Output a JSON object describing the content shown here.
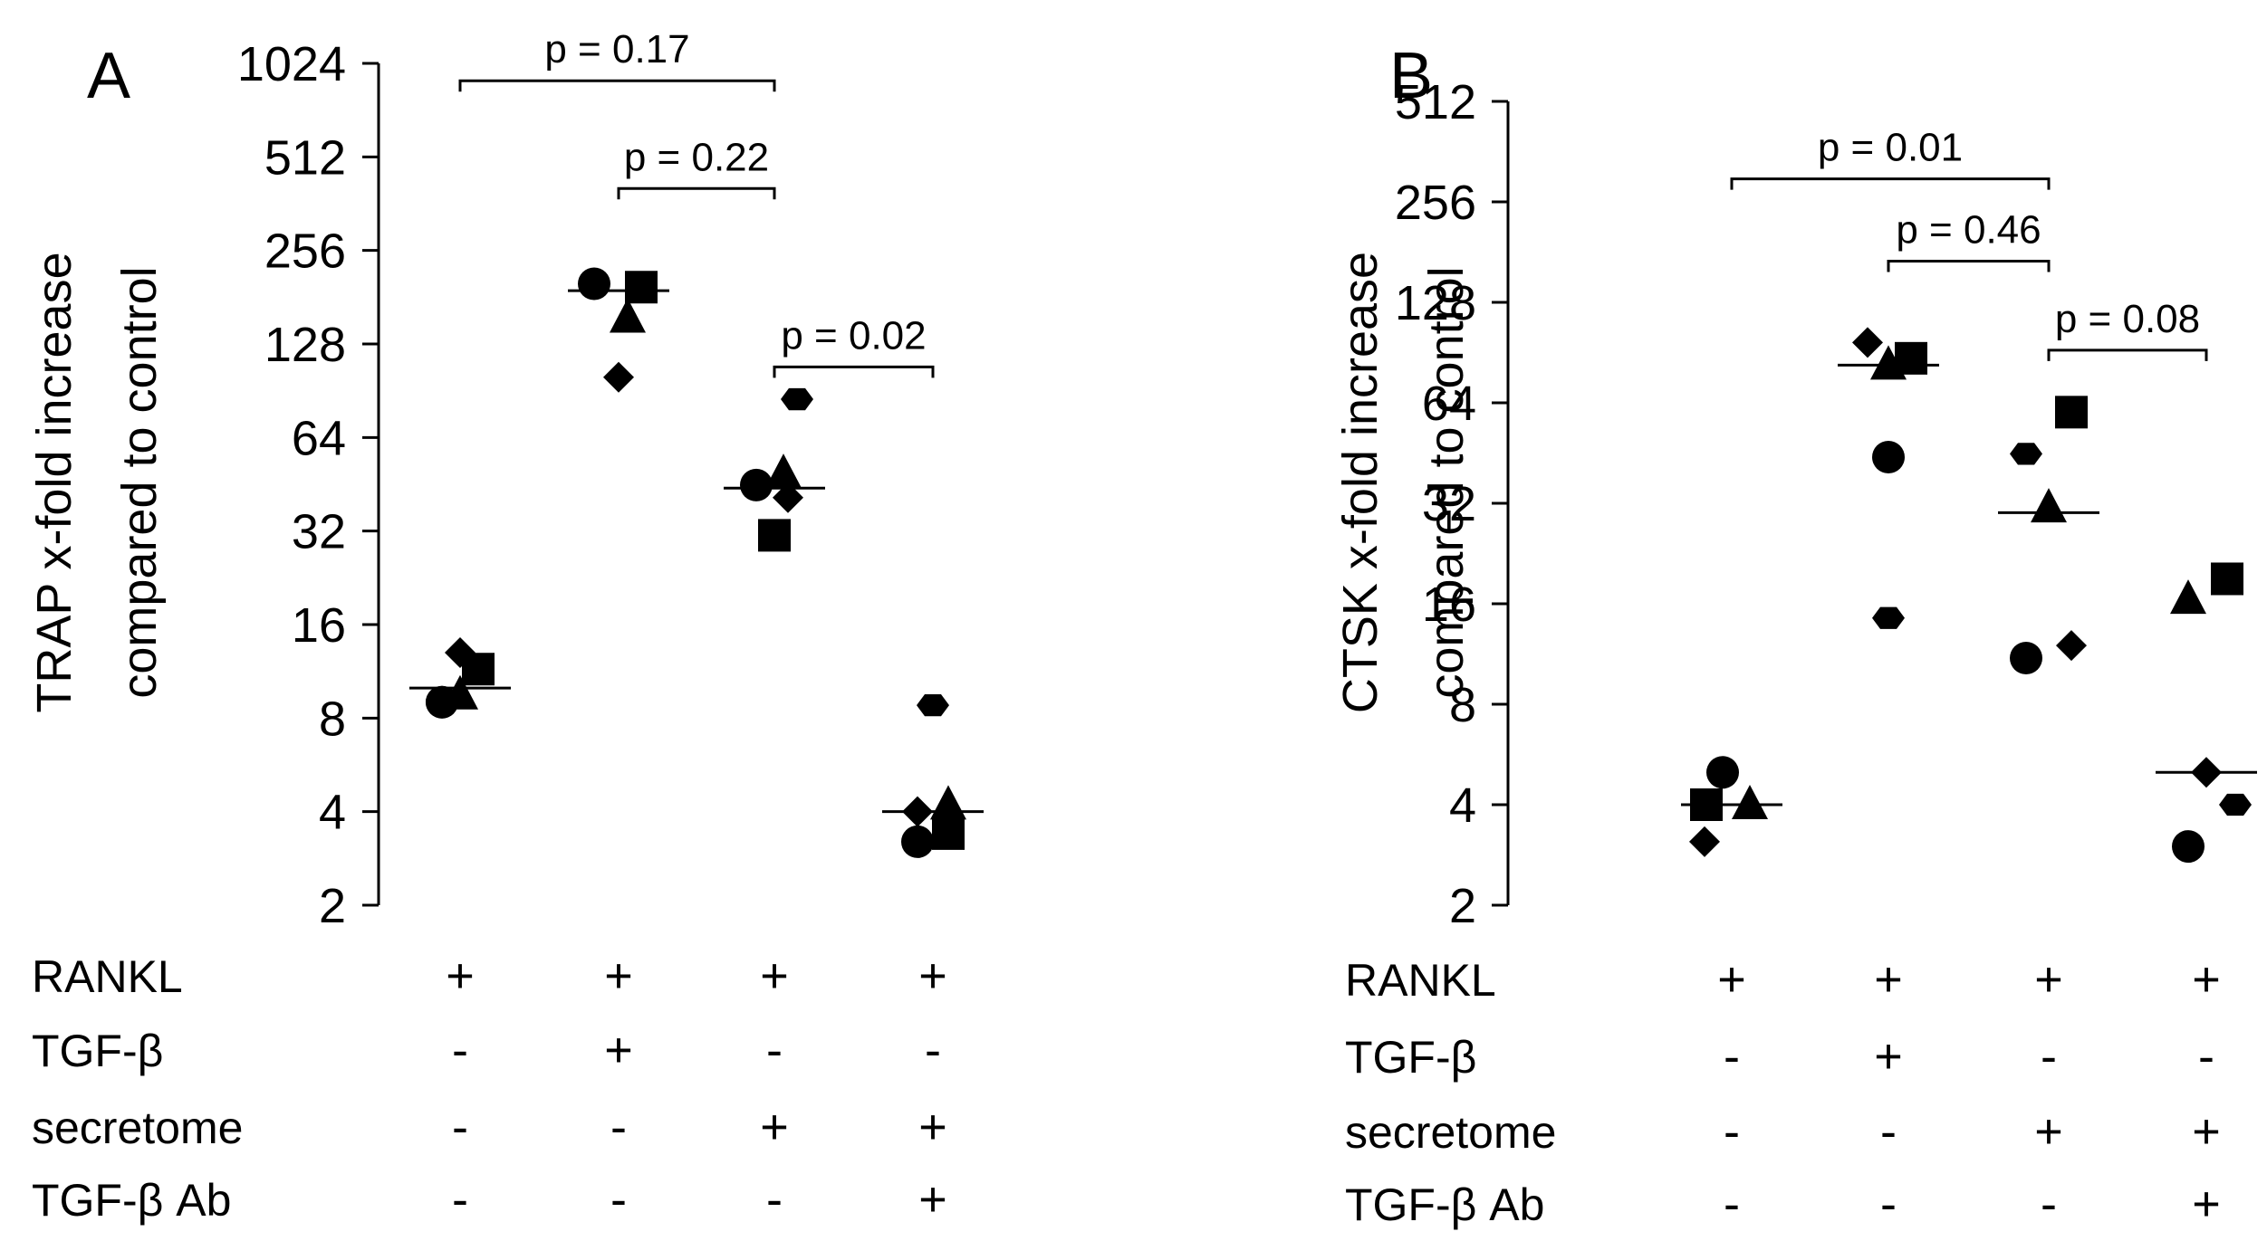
{
  "chart_data": [
    {
      "type": "scatter",
      "panel": "A",
      "ylabel_lines": [
        "TRAP x-fold increase",
        "compared to control"
      ],
      "yscale": "log2",
      "ylim": [
        2,
        1024
      ],
      "yticks": [
        "2",
        "4",
        "8",
        "16",
        "32",
        "64",
        "128",
        "256",
        "512",
        "1024"
      ],
      "groups": [
        {
          "id": 1,
          "mean": 10,
          "points": [
            {
              "marker": "diamond",
              "value": 13
            },
            {
              "marker": "square",
              "value": 11.5
            },
            {
              "marker": "triangle",
              "value": 9.5
            },
            {
              "marker": "circle",
              "value": 9
            },
            {
              "marker": "circle",
              "value": 9
            }
          ]
        },
        {
          "id": 2,
          "mean": 190,
          "points": [
            {
              "marker": "circle",
              "value": 200
            },
            {
              "marker": "square",
              "value": 195
            },
            {
              "marker": "triangle",
              "value": 155
            },
            {
              "marker": "diamond",
              "value": 100
            }
          ]
        },
        {
          "id": 3,
          "mean": 44,
          "points": [
            {
              "marker": "hexagon",
              "value": 85
            },
            {
              "marker": "triangle",
              "value": 49
            },
            {
              "marker": "circle",
              "value": 45
            },
            {
              "marker": "diamond",
              "value": 41
            },
            {
              "marker": "square",
              "value": 31
            }
          ]
        },
        {
          "id": 4,
          "mean": 4,
          "points": [
            {
              "marker": "hexagon",
              "value": 8.8
            },
            {
              "marker": "triangle",
              "value": 4.2
            },
            {
              "marker": "diamond",
              "value": 4
            },
            {
              "marker": "square",
              "value": 3.4
            },
            {
              "marker": "circle",
              "value": 3.2
            }
          ]
        }
      ],
      "comparisons": [
        {
          "from": 1,
          "to": 3,
          "label": "p = 0.17",
          "y": 900
        },
        {
          "from": 2,
          "to": 3,
          "label": "p = 0.22",
          "y": 405
        },
        {
          "from": 3,
          "to": 4,
          "label": "p = 0.02",
          "y": 108
        }
      ],
      "conditions": [
        {
          "label": "RANKL",
          "signs": [
            "+",
            "+",
            "+",
            "+"
          ]
        },
        {
          "label": "TGF-β",
          "signs": [
            "-",
            "+",
            "-",
            "-"
          ]
        },
        {
          "label": "secretome",
          "signs": [
            "-",
            "-",
            "+",
            "+"
          ]
        },
        {
          "label": "TGF-β Ab",
          "signs": [
            "-",
            "-",
            "-",
            "+"
          ]
        }
      ]
    },
    {
      "type": "scatter",
      "panel": "B",
      "ylabel_lines": [
        "CTSK x-fold increase",
        "compared to control"
      ],
      "yscale": "log2",
      "ylim": [
        2,
        512
      ],
      "yticks": [
        "2",
        "4",
        "8",
        "16",
        "32",
        "64",
        "128",
        "256",
        "512"
      ],
      "groups": [
        {
          "id": 1,
          "mean": 4,
          "points": [
            {
              "marker": "circle",
              "value": 5
            },
            {
              "marker": "square",
              "value": 4
            },
            {
              "marker": "triangle",
              "value": 4
            },
            {
              "marker": "diamond",
              "value": 3.1
            }
          ]
        },
        {
          "id": 2,
          "mean": 83,
          "points": [
            {
              "marker": "diamond",
              "value": 97
            },
            {
              "marker": "square",
              "value": 87
            },
            {
              "marker": "triangle",
              "value": 83
            },
            {
              "marker": "circle",
              "value": 44
            },
            {
              "marker": "hexagon",
              "value": 14.5
            }
          ]
        },
        {
          "id": 3,
          "mean": 30,
          "points": [
            {
              "marker": "square",
              "value": 60
            },
            {
              "marker": "hexagon",
              "value": 45
            },
            {
              "marker": "triangle",
              "value": 31
            },
            {
              "marker": "diamond",
              "value": 12
            },
            {
              "marker": "circle",
              "value": 11
            }
          ]
        },
        {
          "id": 4,
          "mean": 5,
          "points": [
            {
              "marker": "square",
              "value": 19
            },
            {
              "marker": "triangle",
              "value": 16.5
            },
            {
              "marker": "diamond",
              "value": 5
            },
            {
              "marker": "hexagon",
              "value": 4
            },
            {
              "marker": "circle",
              "value": 3
            }
          ]
        }
      ],
      "comparisons": [
        {
          "from": 1,
          "to": 3,
          "label": "p = 0.01",
          "y": 300
        },
        {
          "from": 2,
          "to": 3,
          "label": "p = 0.46",
          "y": 170
        },
        {
          "from": 3,
          "to": 4,
          "label": "p = 0.08",
          "y": 92
        }
      ],
      "conditions": [
        {
          "label": "RANKL",
          "signs": [
            "+",
            "+",
            "+",
            "+"
          ]
        },
        {
          "label": "TGF-β",
          "signs": [
            "-",
            "+",
            "-",
            "-"
          ]
        },
        {
          "label": "secretome",
          "signs": [
            "-",
            "-",
            "+",
            "+"
          ]
        },
        {
          "label": "TGF-β Ab",
          "signs": [
            "-",
            "-",
            "-",
            "+"
          ]
        }
      ]
    }
  ]
}
